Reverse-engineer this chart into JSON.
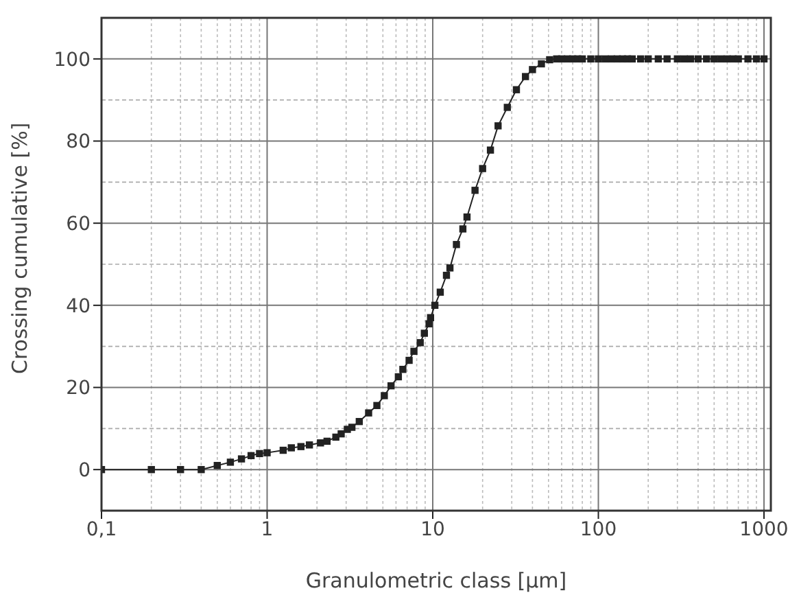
{
  "chart_data": {
    "type": "line",
    "xlabel": "Granulometric class [µm]",
    "ylabel": "Crossing cumulative [%]",
    "log": "x",
    "grid": true,
    "marker": "square",
    "line_style": "solid",
    "legend": false,
    "xlim": [
      0.1,
      1100
    ],
    "xticks": [
      {
        "value": 0.1,
        "label": "0,1"
      },
      1,
      10,
      100,
      1000
    ],
    "ylim": [
      -10,
      110
    ],
    "yticks": [
      0,
      20,
      40,
      60,
      80,
      100
    ],
    "series": [
      {
        "color": "#222222",
        "x": [
          0.1,
          0.2,
          0.3,
          0.4,
          0.5,
          0.6,
          0.7,
          0.8,
          0.9,
          1.0,
          1.25,
          1.4,
          1.6,
          1.8,
          2.1,
          2.3,
          2.6,
          2.8,
          3.05,
          3.25,
          3.6,
          4.1,
          4.6,
          5.1,
          5.6,
          6.2,
          6.6,
          7.2,
          7.7,
          8.4,
          8.9,
          9.5,
          9.7,
          10.3,
          11.1,
          12.1,
          12.7,
          13.9,
          15.2,
          16.1,
          18,
          20,
          22.3,
          24.8,
          28.2,
          32,
          36.3,
          40,
          45.3,
          50.8,
          56,
          60,
          65,
          70,
          75,
          80,
          90,
          100,
          110,
          120,
          130,
          140,
          150,
          160,
          180,
          200,
          230,
          260,
          300,
          330,
          360,
          400,
          450,
          500,
          550,
          600,
          650,
          700,
          800,
          900,
          1000
        ],
        "values": [
          0,
          0,
          0,
          0,
          1,
          1.8,
          2.6,
          3.4,
          3.9,
          4.1,
          4.7,
          5.3,
          5.6,
          6,
          6.5,
          6.9,
          7.9,
          8.7,
          9.8,
          10.3,
          11.7,
          13.8,
          15.6,
          18,
          20.4,
          22.6,
          24.4,
          26.6,
          28.8,
          30.9,
          33.2,
          35.5,
          37,
          40,
          43.2,
          47.3,
          49.1,
          54.8,
          58.6,
          61.5,
          68,
          73.3,
          77.8,
          83.7,
          88.2,
          92.5,
          95.7,
          97.4,
          98.8,
          99.8,
          100,
          100,
          100,
          100,
          100,
          100,
          100,
          100,
          100,
          100,
          100,
          100,
          100,
          100,
          100,
          100,
          100,
          100,
          100,
          100,
          100,
          100,
          100,
          100,
          100,
          100,
          100,
          100,
          100,
          100,
          100
        ]
      }
    ]
  }
}
